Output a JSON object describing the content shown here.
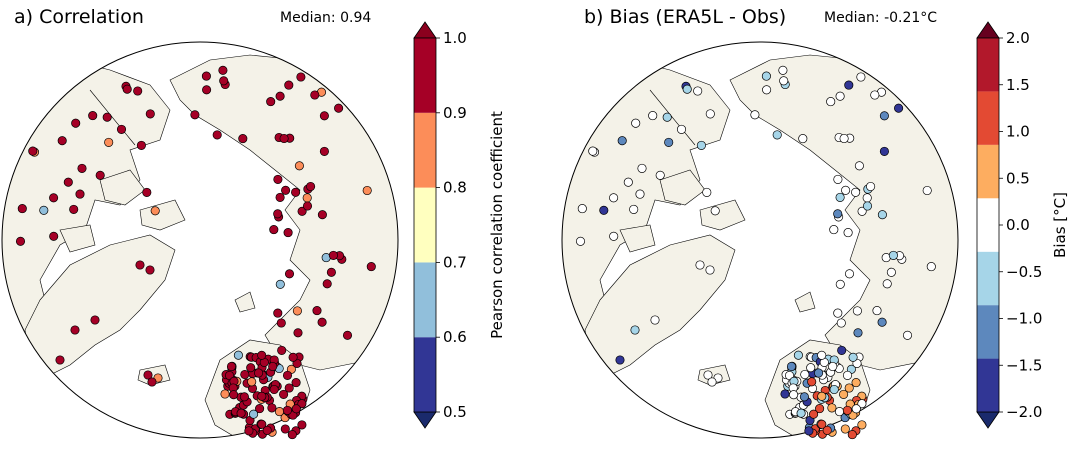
{
  "panels": {
    "a": {
      "title": "a) Correlation",
      "median_label": "Median: 0.94"
    },
    "b": {
      "title": "b) Bias (ERA5L - Obs)",
      "median_label": "Median: -0.21°C"
    }
  },
  "colorbars": {
    "a": {
      "label": "Pearson correlation coefficient",
      "ticks": [
        "0.5",
        "0.6",
        "0.7",
        "0.8",
        "0.9",
        "1.0"
      ],
      "bins": [
        {
          "min": 0.5,
          "max": 0.6,
          "color": "#313695"
        },
        {
          "min": 0.6,
          "max": 0.7,
          "color": "#91bfdb"
        },
        {
          "min": 0.7,
          "max": 0.8,
          "color": "#ffffbf"
        },
        {
          "min": 0.8,
          "max": 0.9,
          "color": "#fc8d59"
        },
        {
          "min": 0.9,
          "max": 1.0,
          "color": "#a50026"
        }
      ],
      "extend_low_color": "#1a2a6c",
      "extend_high_color": "#8b001e"
    },
    "b": {
      "label": "Bias [°C]",
      "ticks": [
        "−2.0",
        "−1.5",
        "−1.0",
        "−0.5",
        "0.0",
        "0.5",
        "1.0",
        "1.5",
        "2.0"
      ],
      "bins": [
        {
          "min": -2.0,
          "max": -1.5,
          "color": "#313695"
        },
        {
          "min": -1.5,
          "max": -1.0,
          "color": "#5d88bd"
        },
        {
          "min": -1.0,
          "max": -0.5,
          "color": "#a6d5e8"
        },
        {
          "min": -0.5,
          "max": 0.5,
          "color": "#ffffff"
        },
        {
          "min": 0.5,
          "max": 1.0,
          "color": "#fdad60"
        },
        {
          "min": 1.0,
          "max": 1.5,
          "color": "#e34a33"
        },
        {
          "min": 1.5,
          "max": 2.0,
          "color": "#b2182b"
        }
      ],
      "extend_low_color": "#1a2a6c",
      "extend_high_color": "#67001f"
    }
  },
  "colors": {
    "land": "#f4f2e8",
    "ocean": "#ffffff",
    "coast": "#000000"
  },
  "chart_data": [
    {
      "type": "scatter",
      "title": "a) Correlation",
      "subtitle": "Median: 0.94",
      "colorbar_label": "Pearson correlation coefficient",
      "clim": [
        0.5,
        1.0
      ],
      "projection": "north-polar-stereographic",
      "station_summary": {
        "above_0.9": "majority",
        "0.8_to_0.9": "few",
        "0.6_to_0.7": "few",
        "below_0.6": "very few"
      },
      "median": 0.94
    },
    {
      "type": "scatter",
      "title": "b) Bias (ERA5L - Obs)",
      "subtitle": "Median: -0.21°C",
      "colorbar_label": "Bias [°C]",
      "clim": [
        -2.0,
        2.0
      ],
      "projection": "north-polar-stereographic",
      "median": -0.21
    }
  ]
}
